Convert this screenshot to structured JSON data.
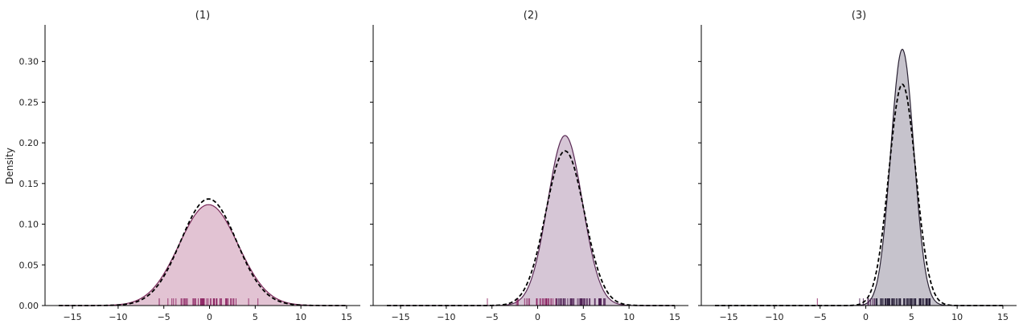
{
  "figure": {
    "ylabel": "Density"
  },
  "colors": {
    "panel1_fill": "#e2c3d3",
    "panel1_line": "#7a2a5a",
    "panel2_fill": "#d6c6d6",
    "panel2_line": "#5a2a55",
    "panel3_fill": "#c6c3cc",
    "panel3_line": "#2a2233",
    "dashed": "#000000",
    "rug_magenta": "#8a1f5f",
    "rug_purple": "#4a1a50",
    "rug_dark": "#1e1530"
  },
  "chart_data": [
    {
      "type": "area",
      "title": "(1)",
      "xlabel": "",
      "ylabel": "Density",
      "xlim": [
        -18,
        16.5
      ],
      "ylim": [
        0,
        0.345
      ],
      "xticks": [
        "−15",
        "−10",
        "−5",
        "0",
        "5",
        "10",
        "15"
      ],
      "yticks": [
        "0.00",
        "0.05",
        "0.10",
        "0.15",
        "0.20",
        "0.25",
        "0.30"
      ],
      "kde": {
        "mean": -0.1,
        "peak": 0.124
      },
      "normal_fit": {
        "mean": -0.1,
        "peak": 0.131
      },
      "rug": {
        "min": -5.5,
        "max": 5.3,
        "count": 60
      }
    },
    {
      "type": "area",
      "title": "(2)",
      "xlabel": "",
      "ylabel": "",
      "xlim": [
        -18,
        16.5
      ],
      "ylim": [
        0,
        0.345
      ],
      "xticks": [
        "−15",
        "−10",
        "−5",
        "0",
        "5",
        "10",
        "15"
      ],
      "yticks": [
        "0.00",
        "0.05",
        "0.10",
        "0.15",
        "0.20",
        "0.25",
        "0.30"
      ],
      "kde": {
        "mean": 3.0,
        "peak": 0.209
      },
      "normal_fit": {
        "mean": 3.0,
        "peak": 0.19
      },
      "rug": {
        "min": -5.5,
        "max": 7.4,
        "count": 80
      }
    },
    {
      "type": "area",
      "title": "(3)",
      "xlabel": "",
      "ylabel": "",
      "xlim": [
        -18,
        16.5
      ],
      "ylim": [
        0,
        0.345
      ],
      "xticks": [
        "−15",
        "−10",
        "−5",
        "0",
        "5",
        "10",
        "15"
      ],
      "yticks": [
        "0.00",
        "0.05",
        "0.10",
        "0.15",
        "0.20",
        "0.25",
        "0.30"
      ],
      "kde": {
        "mean": 4.0,
        "peak": 0.315
      },
      "normal_fit": {
        "mean": 4.0,
        "peak": 0.272
      },
      "rug": {
        "min": -5.3,
        "max": 7.0,
        "count": 90
      }
    }
  ]
}
